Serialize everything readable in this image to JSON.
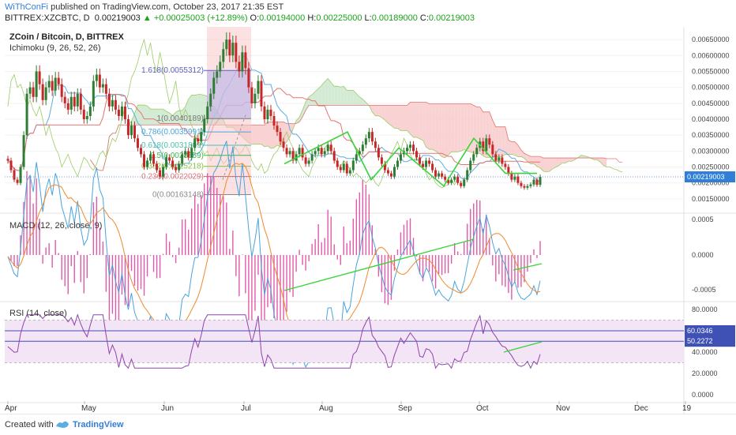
{
  "header": {
    "publisher": "WiThConFi",
    "published_text": "published on TradingView.com, October 23, 2017 21:35 EST",
    "symbol": "BITTREX:XZCBTC, D",
    "price": "0.00219003",
    "change": "+0.00025003 (+12.89%)",
    "o_label": "O:",
    "o_value": "0.00194000",
    "h_label": "H:",
    "h_value": "0.00225000",
    "l_label": "L:",
    "l_value": "0.00189000",
    "c_label": "C:",
    "c_value": "0.00219003"
  },
  "colors": {
    "candle_up": "#2e7d32",
    "candle_down": "#c62828",
    "tenkan": "#5dade2",
    "kijun": "#e57373",
    "chikou": "#9ccc65",
    "cloud_bull": "#c8e6c9",
    "cloud_bear": "#f8c8c8",
    "trend": "#38d438",
    "macd": "#4aa3df",
    "signal": "#f08a2c",
    "hist": "#e05aa8",
    "rsi": "#8e44ad",
    "rsi_band": "#f3e5f5",
    "price_tag": "#2f7fd8"
  },
  "chart_data": [
    {
      "type": "candlestick",
      "title": "ZCoin / Bitcoin, D, BITTREX",
      "indicator": "Ichimoku (9, 26, 52, 26)",
      "ylim": [
        0.0011,
        0.0069
      ],
      "yticks": [
        "0.00650000",
        "0.00600000",
        "0.00550000",
        "0.00500000",
        "0.00450000",
        "0.00400000",
        "0.00350000",
        "0.00300000",
        "0.00250000",
        "0.00200000",
        "0.00150000"
      ],
      "last_price_tag": "0.00219003",
      "fib_levels": [
        {
          "label": "1.618(0.0055312)",
          "value": 0.0055312
        },
        {
          "label": "1(0.0040189)",
          "value": 0.0040189
        },
        {
          "label": "0.786(0.0035991)",
          "value": 0.0035991
        },
        {
          "label": "0.618(0.0031809)",
          "value": 0.0031809
        },
        {
          "label": "0.5(0.0028659)",
          "value": 0.0028659
        },
        {
          "label": "0.382(0.0025218)",
          "value": 0.0025218
        },
        {
          "label": "0.236(0.0022029)",
          "value": 0.0022029
        },
        {
          "label": "0(0.00163148)",
          "value": 0.00163148
        }
      ],
      "close": [
        0.0027,
        0.0024,
        0.0021,
        0.002,
        0.0025,
        0.0035,
        0.0048,
        0.005,
        0.0047,
        0.0055,
        0.0051,
        0.0046,
        0.005,
        0.0052,
        0.0049,
        0.0053,
        0.0051,
        0.0047,
        0.0045,
        0.0043,
        0.0047,
        0.0044,
        0.0048,
        0.0043,
        0.004,
        0.0041,
        0.0044,
        0.0052,
        0.0054,
        0.005,
        0.0051,
        0.0048,
        0.0044,
        0.0046,
        0.0043,
        0.0041,
        0.0044,
        0.004,
        0.0035,
        0.0038,
        0.0034,
        0.0031,
        0.0029,
        0.0025,
        0.0027,
        0.0029,
        0.0026,
        0.0024,
        0.0022,
        0.0025,
        0.0028,
        0.0027,
        0.0025,
        0.0024,
        0.0026,
        0.0029,
        0.003,
        0.0028,
        0.0031,
        0.0034,
        0.0033,
        0.0036,
        0.004,
        0.0044,
        0.0048,
        0.0053,
        0.0055,
        0.0058,
        0.0062,
        0.0065,
        0.006,
        0.0064,
        0.0058,
        0.0055,
        0.0061,
        0.0056,
        0.005,
        0.0045,
        0.0048,
        0.0052,
        0.0044,
        0.004,
        0.0043,
        0.0041,
        0.0038,
        0.0036,
        0.0033,
        0.0031,
        0.0029,
        0.003,
        0.0027,
        0.0029,
        0.0031,
        0.0028,
        0.0026,
        0.0027,
        0.0029,
        0.003,
        0.0031,
        0.0029,
        0.003,
        0.0032,
        0.003,
        0.0027,
        0.0025,
        0.0024,
        0.0026,
        0.0023,
        0.0024,
        0.0027,
        0.0029,
        0.003,
        0.0032,
        0.0034,
        0.0036,
        0.0033,
        0.0031,
        0.0028,
        0.0026,
        0.0024,
        0.0023,
        0.0022,
        0.0025,
        0.0027,
        0.0029,
        0.003,
        0.0031,
        0.0032,
        0.003,
        0.0028,
        0.0026,
        0.0025,
        0.0027,
        0.0026,
        0.0024,
        0.0022,
        0.0023,
        0.0022,
        0.0021,
        0.002,
        0.0021,
        0.0022,
        0.002,
        0.0019,
        0.0021,
        0.0024,
        0.0027,
        0.0029,
        0.0031,
        0.0033,
        0.003,
        0.0034,
        0.0032,
        0.0029,
        0.0027,
        0.0028,
        0.0026,
        0.0025,
        0.0023,
        0.0021,
        0.0022,
        0.002,
        0.0019,
        0.00185,
        0.0019,
        0.00195,
        0.0021,
        0.00194,
        0.00219
      ]
    },
    {
      "type": "line",
      "title": "MACD (12, 26, close, 9)",
      "ylim": [
        -0.006,
        0.006
      ],
      "yticks": [
        "0.0005",
        "0.0000",
        "-0.0005"
      ]
    },
    {
      "type": "line",
      "title": "RSI (14, close)",
      "ylim": [
        0,
        80
      ],
      "yticks": [
        "80.0000",
        "60.0346",
        "50.2272",
        "40.0000",
        "20.0000",
        "0.0000"
      ],
      "levels": [
        70,
        30
      ]
    },
    {
      "type": "axis",
      "xticks": [
        "Apr",
        "May",
        "Jun",
        "Jul",
        "Aug",
        "Sep",
        "Oct",
        "Nov",
        "Dec",
        "19"
      ]
    }
  ],
  "footer": {
    "created_with": "Created with",
    "brand": "TradingView"
  }
}
